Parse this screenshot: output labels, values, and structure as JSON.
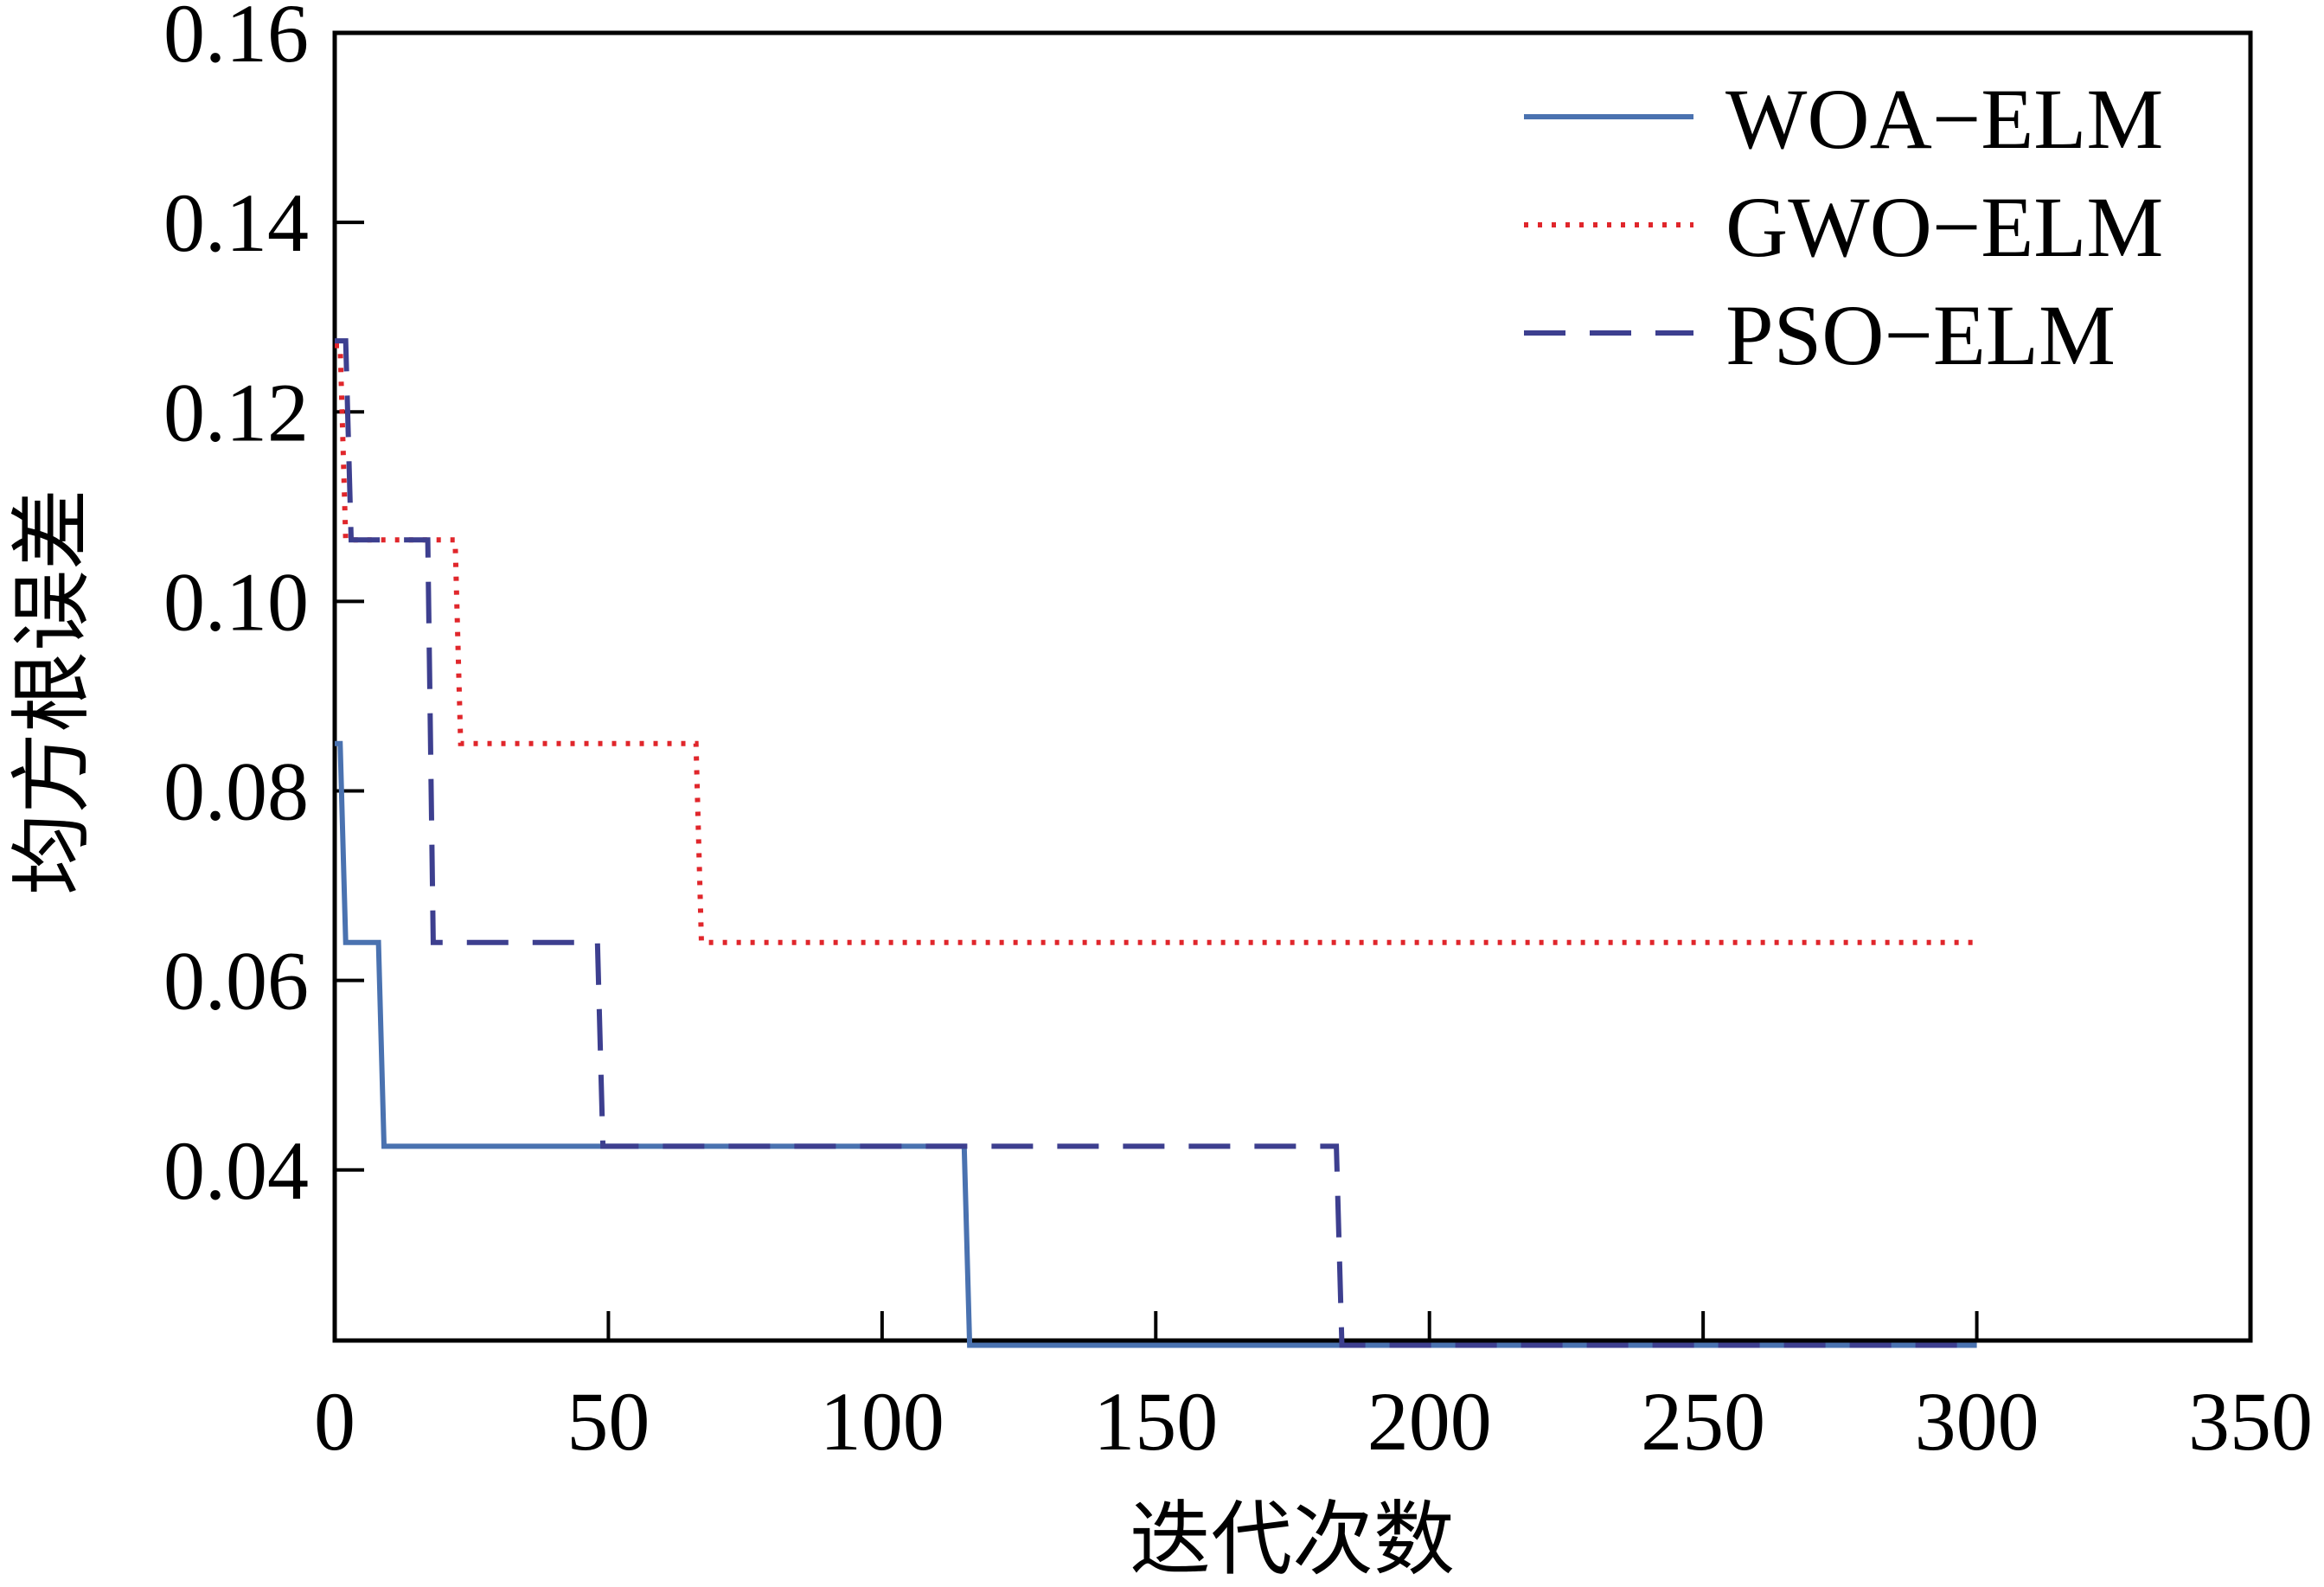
{
  "chart_data": {
    "type": "line",
    "title": "",
    "xlabel": "迭代次数",
    "ylabel": "均方根误差",
    "xlim": [
      0,
      350
    ],
    "ylim": [
      0.022,
      0.16
    ],
    "xticks": [
      "0",
      "50",
      "100",
      "150",
      "200",
      "250",
      "300",
      "350"
    ],
    "xtick_values": [
      0,
      50,
      100,
      150,
      200,
      250,
      300,
      350
    ],
    "yticks": [
      "0.04",
      "0.06",
      "0.08",
      "0.10",
      "0.12",
      "0.14",
      "0.16"
    ],
    "ytick_values": [
      0.04,
      0.06,
      0.08,
      0.1,
      0.12,
      0.14,
      0.16
    ],
    "grid": false,
    "legend_position": "top-right",
    "series": [
      {
        "name": "WOA−ELM",
        "color": "#4a72b0",
        "style": "solid",
        "x": [
          0,
          1,
          2,
          8,
          9,
          115,
          116,
          300
        ],
        "y": [
          0.085,
          0.085,
          0.064,
          0.064,
          0.0425,
          0.0425,
          0.0215,
          0.0215
        ]
      },
      {
        "name": "GWO−ELM",
        "color": "#e0262b",
        "style": "dotted",
        "x": [
          0,
          1,
          2,
          22,
          23,
          66,
          67,
          300
        ],
        "y": [
          0.127,
          0.127,
          0.1065,
          0.1065,
          0.085,
          0.085,
          0.064,
          0.064
        ]
      },
      {
        "name": "PSO−ELM",
        "color": "#3d3f8f",
        "style": "dashed",
        "x": [
          0,
          2,
          3,
          17,
          18,
          48,
          49,
          183,
          184,
          300
        ],
        "y": [
          0.1275,
          0.1275,
          0.1065,
          0.1065,
          0.064,
          0.064,
          0.0425,
          0.0425,
          0.0215,
          0.0215
        ]
      }
    ]
  }
}
